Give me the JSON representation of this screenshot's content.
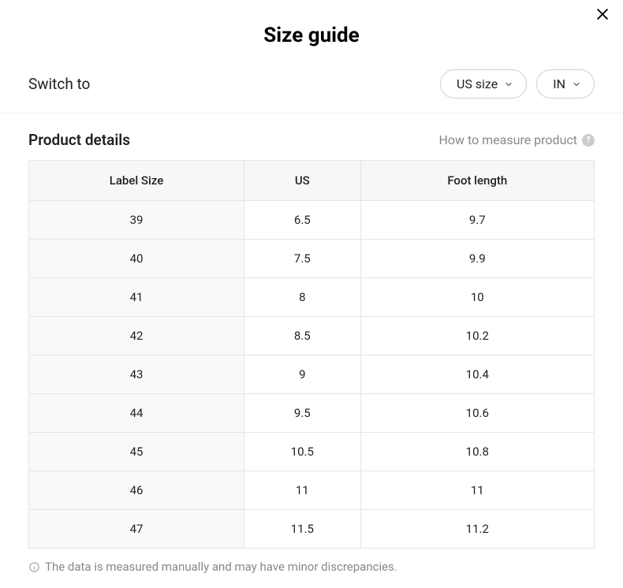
{
  "title": "Size guide",
  "switch_label": "Switch to",
  "dropdowns": {
    "size_system": "US size",
    "unit": "IN"
  },
  "product_details_label": "Product details",
  "measure_link": "How to measure product",
  "table": {
    "columns": [
      "Label Size",
      "US",
      "Foot length"
    ],
    "rows": [
      [
        "39",
        "6.5",
        "9.7"
      ],
      [
        "40",
        "7.5",
        "9.9"
      ],
      [
        "41",
        "8",
        "10"
      ],
      [
        "42",
        "8.5",
        "10.2"
      ],
      [
        "43",
        "9",
        "10.4"
      ],
      [
        "44",
        "9.5",
        "10.6"
      ],
      [
        "45",
        "10.5",
        "10.8"
      ],
      [
        "46",
        "11",
        "11"
      ],
      [
        "47",
        "11.5",
        "11.2"
      ]
    ],
    "header_bg": "#f7f7f7",
    "first_col_bg": "#f9f9f9",
    "border_color": "#e5e5e5",
    "text_color": "#222222",
    "cell_fontsize": 15
  },
  "disclaimer": "The data is measured manually and may have minor discrepancies.",
  "colors": {
    "background": "#ffffff",
    "text": "#222222",
    "muted": "#888888",
    "border": "#e5e5e5",
    "dropdown_border": "#d0d0d0",
    "divider": "#eeeeee"
  }
}
